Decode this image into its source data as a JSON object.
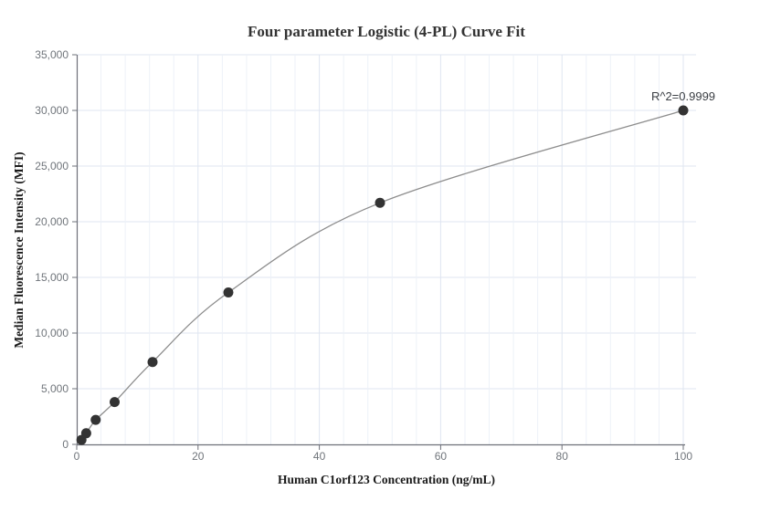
{
  "chart_data": {
    "type": "scatter",
    "title": "Four parameter Logistic (4-PL) Curve Fit",
    "xlabel": "Human C1orf123 Concentration (ng/mL)",
    "ylabel": "Median Fluorescence Intensity (MFI)",
    "x": [
      0.78125,
      1.5625,
      3.125,
      6.25,
      12.5,
      25,
      50,
      100
    ],
    "y": [
      400,
      1000,
      2200,
      3800,
      7400,
      13650,
      21700,
      30000
    ],
    "fit_type": "4-PL curve",
    "r_squared_label": "R^2=0.9999",
    "xlim": [
      0,
      100
    ],
    "ylim": [
      0,
      35000
    ],
    "x_ticks": [
      0,
      20,
      40,
      60,
      80,
      100
    ],
    "x_minor_grid_step": 4,
    "y_ticks": [
      0,
      5000,
      10000,
      15000,
      20000,
      25000,
      30000,
      35000
    ],
    "y_tick_labels": [
      "0",
      "5,000",
      "10,000",
      "15,000",
      "20,000",
      "25,000",
      "30,000",
      "35,000"
    ],
    "legend": "none",
    "grid": true,
    "curve_start_y": 150,
    "colors": {
      "point": "#333333",
      "curve": "#8d8d8d",
      "axis": "#6e7079",
      "grid_major": "#dfe5f1",
      "grid_minor": "#edf1f8",
      "tick_text": "#70757b",
      "title_text": "#333333",
      "annotation_text": "#3c4045",
      "background": "#ffffff"
    }
  }
}
